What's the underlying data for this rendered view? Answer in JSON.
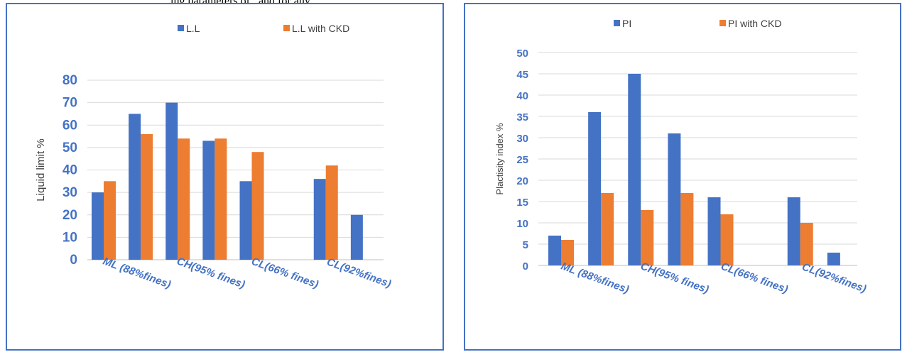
{
  "caption_fragment": "ing parameters of   , and   for any",
  "colors": {
    "series1": "#4472c4",
    "series2": "#ed7d31",
    "axis_text": "#4472c4",
    "grid": "#d9d9d9",
    "frame": "#4472c4"
  },
  "chart_data": [
    {
      "type": "bar",
      "categories": [
        "ML (88%fines)",
        "",
        "CH(95% fines)",
        "",
        "CL(66% fines)",
        "",
        "CL(92%fines)",
        ""
      ],
      "series": [
        {
          "name": "L.L",
          "values": [
            30,
            65,
            70,
            53,
            35,
            null,
            36,
            20
          ]
        },
        {
          "name": "L.L with CKD",
          "values": [
            35,
            56,
            54,
            54,
            48,
            null,
            42,
            null
          ]
        }
      ],
      "ylabel": "Liquid limit %",
      "xlabel": "",
      "ylim": [
        0,
        80
      ],
      "ytick_step": 10,
      "legend_position": "top",
      "grid": true
    },
    {
      "type": "bar",
      "categories": [
        "ML (88%fines)",
        "",
        "CH(95% fines)",
        "",
        "CL(66% fines)",
        "",
        "CL(92%fines)",
        ""
      ],
      "series": [
        {
          "name": "PI",
          "values": [
            7,
            36,
            45,
            31,
            16,
            null,
            16,
            3
          ]
        },
        {
          "name": "PI with CKD",
          "values": [
            6,
            17,
            13,
            17,
            12,
            null,
            10,
            null
          ]
        }
      ],
      "ylabel": "Plactisity index %",
      "xlabel": "",
      "ylim": [
        0,
        50
      ],
      "ytick_step": 5,
      "legend_position": "top",
      "grid": true
    }
  ]
}
